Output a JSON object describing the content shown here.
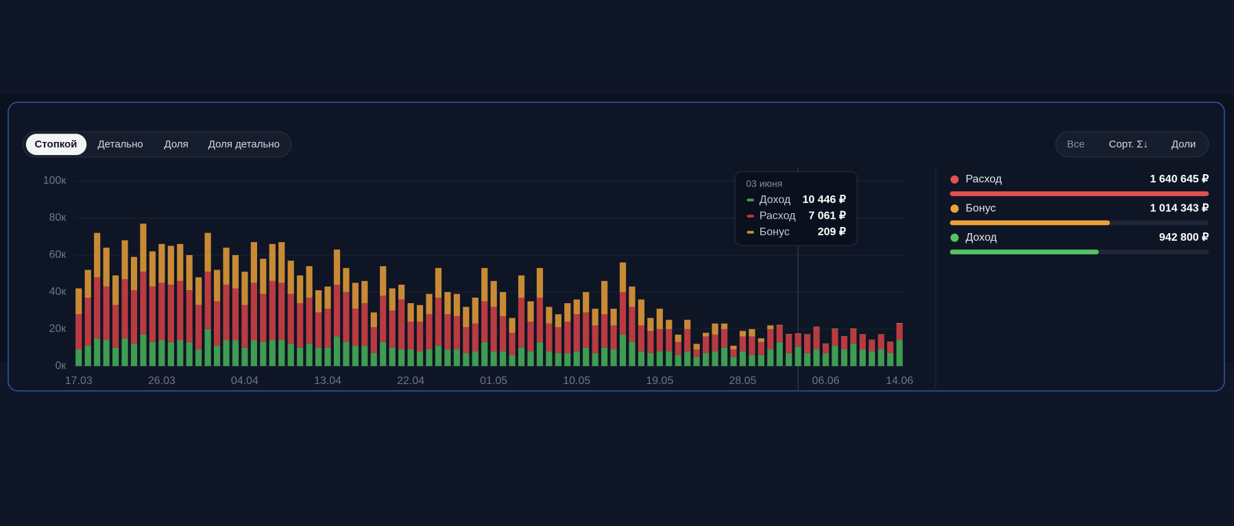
{
  "controls": {
    "tabs": [
      "Стопкой",
      "Детально",
      "Доля",
      "Доля детально"
    ],
    "actions": [
      "Все",
      "Сорт. Σ↓",
      "Доли"
    ]
  },
  "chart_data": {
    "type": "stacked_bar",
    "categories": [
      "17.03",
      null,
      null,
      null,
      null,
      null,
      null,
      null,
      null,
      "26.03",
      null,
      null,
      null,
      null,
      null,
      null,
      null,
      null,
      "04.04",
      null,
      null,
      null,
      null,
      null,
      null,
      null,
      null,
      "13.04",
      null,
      null,
      null,
      null,
      null,
      null,
      null,
      null,
      "22.04",
      null,
      null,
      null,
      null,
      null,
      null,
      null,
      null,
      "01.05",
      null,
      null,
      null,
      null,
      null,
      null,
      null,
      null,
      "10.05",
      null,
      null,
      null,
      null,
      null,
      null,
      null,
      null,
      "19.05",
      null,
      null,
      null,
      null,
      null,
      null,
      null,
      null,
      "28.05",
      null,
      null,
      null,
      null,
      null,
      null,
      null,
      null,
      "06.06",
      null,
      null,
      null,
      null,
      null,
      null,
      null,
      "14.06"
    ],
    "series": [
      {
        "name": "Доход",
        "color": "#3f9c52",
        "values": [
          9000,
          11000,
          15000,
          14000,
          10000,
          15000,
          12000,
          17000,
          13000,
          14000,
          13000,
          14000,
          13000,
          9000,
          20000,
          11000,
          14000,
          14000,
          10000,
          14000,
          13000,
          14000,
          14000,
          12000,
          10000,
          12000,
          10000,
          10000,
          16000,
          13000,
          11000,
          11000,
          7000,
          13000,
          10000,
          9000,
          9000,
          8000,
          9000,
          11000,
          9000,
          9000,
          7000,
          8000,
          13000,
          8000,
          8000,
          6000,
          10000,
          8000,
          13000,
          8000,
          7000,
          7000,
          8000,
          10000,
          7000,
          10000,
          9000,
          17000,
          13000,
          8000,
          7000,
          8000,
          8000,
          6000,
          8000,
          5000,
          7000,
          8000,
          10000,
          5000,
          8000,
          6000,
          6000,
          9000,
          13000,
          7000,
          10446,
          7000,
          9000,
          7000,
          11000,
          9000,
          12000,
          9000,
          8000,
          9000,
          7000,
          14000
        ]
      },
      {
        "name": "Расход",
        "color": "#b93b41",
        "values": [
          19000,
          26000,
          33000,
          29000,
          23000,
          32000,
          29000,
          34000,
          30000,
          31000,
          31000,
          32000,
          28000,
          24000,
          31000,
          24000,
          30000,
          28000,
          23000,
          31000,
          26000,
          32000,
          31000,
          27000,
          24000,
          25000,
          19000,
          21000,
          28000,
          27000,
          20000,
          23000,
          14000,
          25000,
          20000,
          27000,
          15000,
          16000,
          19000,
          26000,
          19000,
          18000,
          14000,
          15000,
          22000,
          24000,
          19000,
          12000,
          27000,
          16000,
          24000,
          15000,
          14000,
          17000,
          20000,
          19000,
          15000,
          18000,
          13000,
          23000,
          19000,
          14000,
          12000,
          12000,
          12000,
          7000,
          12000,
          4000,
          9000,
          9000,
          10000,
          4000,
          8000,
          10000,
          7000,
          11000,
          9000,
          10000,
          7061,
          10000,
          12000,
          5000,
          9000,
          7000,
          8000,
          8000,
          6000,
          8000,
          6000,
          9000
        ]
      },
      {
        "name": "Бонус",
        "color": "#c98a36",
        "values": [
          14000,
          15000,
          24000,
          21000,
          16000,
          21000,
          18000,
          26000,
          19000,
          21000,
          21000,
          20000,
          19000,
          15000,
          21000,
          17000,
          20000,
          18000,
          18000,
          22000,
          19000,
          20000,
          22000,
          18000,
          15000,
          17000,
          12000,
          12000,
          19000,
          13000,
          14000,
          12000,
          8000,
          16000,
          12000,
          8000,
          10000,
          9000,
          11000,
          16000,
          12000,
          12000,
          11000,
          14000,
          18000,
          14000,
          13000,
          8000,
          12000,
          11000,
          16000,
          9000,
          7000,
          10000,
          8000,
          11000,
          9000,
          18000,
          9000,
          16000,
          11000,
          14000,
          7000,
          11000,
          5000,
          4000,
          5000,
          3000,
          2000,
          6000,
          3000,
          2000,
          3000,
          4000,
          2000,
          2000,
          300,
          300,
          209,
          200,
          300,
          200,
          300,
          200,
          300,
          200,
          200,
          200,
          200,
          300
        ]
      }
    ],
    "ylim": [
      0,
      100000
    ],
    "yticks": [
      {
        "value": 0,
        "label": "0к"
      },
      {
        "value": 20000,
        "label": "20к"
      },
      {
        "value": 40000,
        "label": "40к"
      },
      {
        "value": 60000,
        "label": "60к"
      },
      {
        "value": 80000,
        "label": "80к"
      },
      {
        "value": 100000,
        "label": "100к"
      }
    ],
    "grid": true,
    "tooltip": {
      "title": "03 июня",
      "value_labels": [
        "10 446 ₽",
        "7 061 ₽",
        "209 ₽"
      ]
    }
  },
  "summary": [
    {
      "name": "Расход",
      "value": 1640645,
      "label": "1 640 645 ₽",
      "color": "#e0514f"
    },
    {
      "name": "Бонус",
      "value": 1014343,
      "label": "1 014 343 ₽",
      "color": "#efa23a"
    },
    {
      "name": "Доход",
      "value": 942800,
      "label": "942 800 ₽",
      "color": "#55c263"
    }
  ]
}
